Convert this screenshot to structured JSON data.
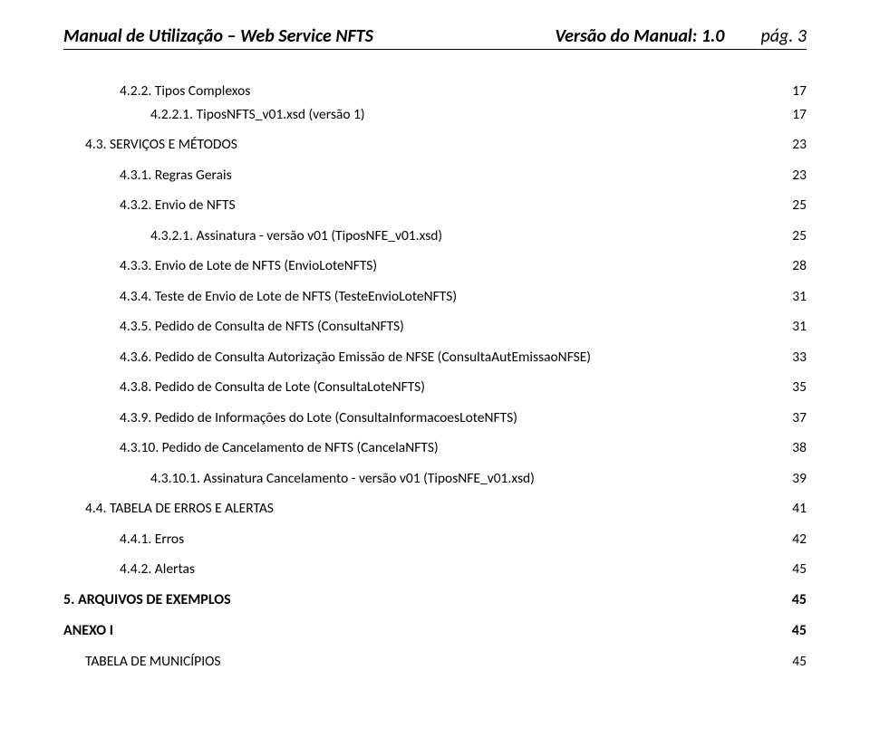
{
  "header": {
    "title": "Manual de Utilização – Web Service NFTS",
    "version": "Versão do Manual: 1.0",
    "page": "pág. 3"
  },
  "toc": [
    {
      "level": 2,
      "label": "4.2.2. Tipos Complexos",
      "page": "17",
      "dots": "spaced"
    },
    {
      "level": 3,
      "label": "4.2.2.1. TiposNFTS_v01.xsd (versão 1)",
      "page": "17",
      "dots": "dense"
    },
    {
      "level": 1,
      "label": "4.3. SERVIÇOS E MÉTODOS",
      "page": "23",
      "dots": "spaced",
      "gap": "md"
    },
    {
      "level": 2,
      "label": "4.3.1. Regras Gerais",
      "page": "23",
      "dots": "spaced",
      "gap": "md"
    },
    {
      "level": 2,
      "label": "4.3.2. Envio de NFTS",
      "page": "25",
      "dots": "spaced",
      "gap": "md"
    },
    {
      "level": 3,
      "label": "4.3.2.1. Assinatura - versão v01 (TiposNFE_v01.xsd)",
      "page": "25",
      "dots": "dense",
      "gap": "md"
    },
    {
      "level": 2,
      "label": "4.3.3. Envio de Lote de NFTS (EnvioLoteNFTS)",
      "page": "28",
      "dots": "spaced",
      "gap": "md"
    },
    {
      "level": 2,
      "label": "4.3.4. Teste de Envio de Lote de NFTS (TesteEnvioLoteNFTS)",
      "page": "31",
      "dots": "spaced",
      "gap": "md"
    },
    {
      "level": 2,
      "label": "4.3.5. Pedido de Consulta de NFTS (ConsultaNFTS)",
      "page": "31",
      "dots": "spaced",
      "gap": "md"
    },
    {
      "level": 2,
      "label": "4.3.6. Pedido de Consulta Autorização Emissão de NFSE (ConsultaAutEmissaoNFSE)",
      "page": "33",
      "dots": "spaced",
      "gap": "md"
    },
    {
      "level": 2,
      "label": "4.3.8. Pedido de Consulta de Lote (ConsultaLoteNFTS)",
      "page": "35",
      "dots": "spaced",
      "gap": "md"
    },
    {
      "level": 2,
      "label": "4.3.9. Pedido de Informações do Lote (ConsultaInformacoesLoteNFTS)",
      "page": "37",
      "dots": "spaced",
      "gap": "md"
    },
    {
      "level": 2,
      "label": "4.3.10. Pedido de Cancelamento de NFTS (CancelaNFTS)",
      "page": "38",
      "dots": "spaced",
      "gap": "md"
    },
    {
      "level": 3,
      "label": "4.3.10.1. Assinatura Cancelamento - versão v01 (TiposNFE_v01.xsd)",
      "page": "39",
      "dots": "dense",
      "gap": "md"
    },
    {
      "level": 1,
      "label": "4.4. TABELA DE ERROS E ALERTAS",
      "page": "41",
      "dots": "spaced",
      "gap": "md"
    },
    {
      "level": 2,
      "label": "4.4.1. Erros",
      "page": "42",
      "dots": "spaced",
      "gap": "md"
    },
    {
      "level": 2,
      "label": "4.4.2. Alertas",
      "page": "45",
      "dots": "spaced",
      "gap": "md"
    },
    {
      "level": 0,
      "label": "5. ARQUIVOS DE EXEMPLOS",
      "page": "45",
      "dots": "dense",
      "gap": "md"
    },
    {
      "level": 0,
      "label": "ANEXO I",
      "page": "45",
      "dots": "dense",
      "gap": "md"
    },
    {
      "level": 1,
      "label": "TABELA DE MUNICÍPIOS",
      "page": "45",
      "dots": "spaced",
      "gap": "md"
    }
  ]
}
